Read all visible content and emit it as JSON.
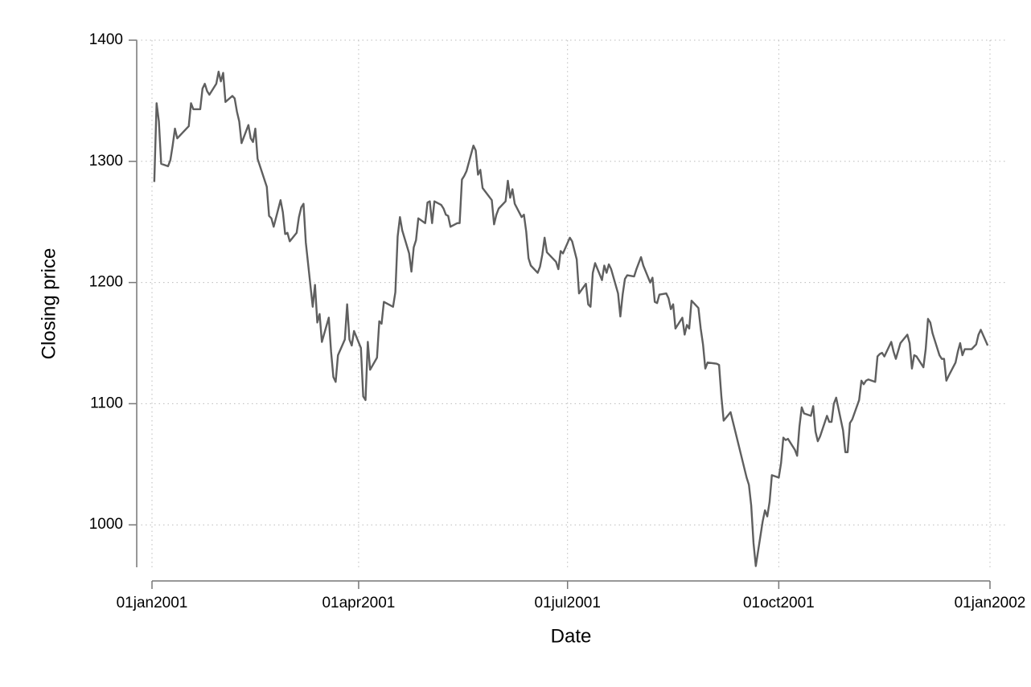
{
  "chart_data": {
    "type": "line",
    "x_label": "Date",
    "y_label": "Closing price",
    "color": "#5f5f5f",
    "grid": true,
    "xlim": [
      "2001-01-01",
      "2002-01-01"
    ],
    "xticks": [
      {
        "value": "2001-01-01",
        "label": "01jan2001"
      },
      {
        "value": "2001-04-01",
        "label": "01apr2001"
      },
      {
        "value": "2001-07-01",
        "label": "01jul2001"
      },
      {
        "value": "2001-10-01",
        "label": "01oct2001"
      },
      {
        "value": "2002-01-01",
        "label": "01jan2002"
      }
    ],
    "ylim": [
      965,
      1400
    ],
    "yticks": [
      1000,
      1100,
      1200,
      1300,
      1400
    ],
    "x": [
      "2001-01-02",
      "2001-01-03",
      "2001-01-04",
      "2001-01-05",
      "2001-01-08",
      "2001-01-09",
      "2001-01-10",
      "2001-01-11",
      "2001-01-12",
      "2001-01-16",
      "2001-01-17",
      "2001-01-18",
      "2001-01-19",
      "2001-01-22",
      "2001-01-23",
      "2001-01-24",
      "2001-01-25",
      "2001-01-26",
      "2001-01-29",
      "2001-01-30",
      "2001-01-31",
      "2001-02-01",
      "2001-02-02",
      "2001-02-05",
      "2001-02-06",
      "2001-02-07",
      "2001-02-08",
      "2001-02-09",
      "2001-02-12",
      "2001-02-13",
      "2001-02-14",
      "2001-02-15",
      "2001-02-16",
      "2001-02-20",
      "2001-02-21",
      "2001-02-22",
      "2001-02-23",
      "2001-02-26",
      "2001-02-27",
      "2001-02-28",
      "2001-03-01",
      "2001-03-02",
      "2001-03-05",
      "2001-03-06",
      "2001-03-07",
      "2001-03-08",
      "2001-03-09",
      "2001-03-12",
      "2001-03-13",
      "2001-03-14",
      "2001-03-15",
      "2001-03-16",
      "2001-03-19",
      "2001-03-20",
      "2001-03-21",
      "2001-03-22",
      "2001-03-23",
      "2001-03-26",
      "2001-03-27",
      "2001-03-28",
      "2001-03-29",
      "2001-03-30",
      "2001-04-02",
      "2001-04-03",
      "2001-04-04",
      "2001-04-05",
      "2001-04-06",
      "2001-04-09",
      "2001-04-10",
      "2001-04-11",
      "2001-04-12",
      "2001-04-16",
      "2001-04-17",
      "2001-04-18",
      "2001-04-19",
      "2001-04-20",
      "2001-04-23",
      "2001-04-24",
      "2001-04-25",
      "2001-04-26",
      "2001-04-27",
      "2001-04-30",
      "2001-05-01",
      "2001-05-02",
      "2001-05-03",
      "2001-05-04",
      "2001-05-07",
      "2001-05-08",
      "2001-05-09",
      "2001-05-10",
      "2001-05-11",
      "2001-05-14",
      "2001-05-15",
      "2001-05-16",
      "2001-05-17",
      "2001-05-18",
      "2001-05-21",
      "2001-05-22",
      "2001-05-23",
      "2001-05-24",
      "2001-05-25",
      "2001-05-29",
      "2001-05-30",
      "2001-05-31",
      "2001-06-01",
      "2001-06-04",
      "2001-06-05",
      "2001-06-06",
      "2001-06-07",
      "2001-06-08",
      "2001-06-11",
      "2001-06-12",
      "2001-06-13",
      "2001-06-14",
      "2001-06-15",
      "2001-06-18",
      "2001-06-19",
      "2001-06-20",
      "2001-06-21",
      "2001-06-22",
      "2001-06-25",
      "2001-06-26",
      "2001-06-27",
      "2001-06-28",
      "2001-06-29",
      "2001-07-02",
      "2001-07-03",
      "2001-07-05",
      "2001-07-06",
      "2001-07-09",
      "2001-07-10",
      "2001-07-11",
      "2001-07-12",
      "2001-07-13",
      "2001-07-16",
      "2001-07-17",
      "2001-07-18",
      "2001-07-19",
      "2001-07-20",
      "2001-07-23",
      "2001-07-24",
      "2001-07-25",
      "2001-07-26",
      "2001-07-27",
      "2001-07-30",
      "2001-07-31",
      "2001-08-01",
      "2001-08-02",
      "2001-08-03",
      "2001-08-06",
      "2001-08-07",
      "2001-08-08",
      "2001-08-09",
      "2001-08-10",
      "2001-08-13",
      "2001-08-14",
      "2001-08-15",
      "2001-08-16",
      "2001-08-17",
      "2001-08-20",
      "2001-08-21",
      "2001-08-22",
      "2001-08-23",
      "2001-08-24",
      "2001-08-27",
      "2001-08-28",
      "2001-08-29",
      "2001-08-30",
      "2001-08-31",
      "2001-09-04",
      "2001-09-05",
      "2001-09-06",
      "2001-09-07",
      "2001-09-10",
      "2001-09-17",
      "2001-09-18",
      "2001-09-19",
      "2001-09-20",
      "2001-09-21",
      "2001-09-24",
      "2001-09-25",
      "2001-09-26",
      "2001-09-27",
      "2001-09-28",
      "2001-10-01",
      "2001-10-02",
      "2001-10-03",
      "2001-10-04",
      "2001-10-05",
      "2001-10-08",
      "2001-10-09",
      "2001-10-10",
      "2001-10-11",
      "2001-10-12",
      "2001-10-15",
      "2001-10-16",
      "2001-10-17",
      "2001-10-18",
      "2001-10-19",
      "2001-10-22",
      "2001-10-23",
      "2001-10-24",
      "2001-10-25",
      "2001-10-26",
      "2001-10-29",
      "2001-10-30",
      "2001-10-31",
      "2001-11-01",
      "2001-11-02",
      "2001-11-05",
      "2001-11-06",
      "2001-11-07",
      "2001-11-08",
      "2001-11-09",
      "2001-11-12",
      "2001-11-13",
      "2001-11-14",
      "2001-11-15",
      "2001-11-16",
      "2001-11-19",
      "2001-11-20",
      "2001-11-21",
      "2001-11-23",
      "2001-11-26",
      "2001-11-27",
      "2001-11-28",
      "2001-11-29",
      "2001-11-30",
      "2001-12-03",
      "2001-12-04",
      "2001-12-05",
      "2001-12-06",
      "2001-12-07",
      "2001-12-10",
      "2001-12-11",
      "2001-12-12",
      "2001-12-13",
      "2001-12-14",
      "2001-12-17",
      "2001-12-18",
      "2001-12-19",
      "2001-12-20",
      "2001-12-21",
      "2001-12-24",
      "2001-12-26",
      "2001-12-27",
      "2001-12-28",
      "2001-12-31"
    ],
    "values": [
      1283,
      1348,
      1333,
      1298,
      1296,
      1301,
      1313,
      1327,
      1319,
      1327,
      1329,
      1348,
      1343,
      1343,
      1360,
      1364,
      1358,
      1355,
      1364,
      1374,
      1366,
      1373,
      1349,
      1354,
      1352,
      1341,
      1333,
      1315,
      1330,
      1319,
      1316,
      1327,
      1302,
      1279,
      1255,
      1253,
      1246,
      1268,
      1258,
      1240,
      1241,
      1234,
      1241,
      1254,
      1262,
      1265,
      1233,
      1180,
      1198,
      1167,
      1174,
      1151,
      1171,
      1143,
      1122,
      1118,
      1140,
      1153,
      1182,
      1153,
      1148,
      1160,
      1146,
      1106,
      1103,
      1151,
      1128,
      1138,
      1168,
      1166,
      1184,
      1180,
      1192,
      1238,
      1254,
      1243,
      1224,
      1209,
      1229,
      1235,
      1253,
      1249,
      1266,
      1267,
      1249,
      1267,
      1264,
      1261,
      1256,
      1255,
      1246,
      1249,
      1249,
      1285,
      1288,
      1292,
      1313,
      1309,
      1289,
      1293,
      1278,
      1268,
      1248,
      1256,
      1261,
      1267,
      1284,
      1270,
      1277,
      1265,
      1254,
      1256,
      1242,
      1220,
      1214,
      1208,
      1213,
      1223,
      1237,
      1225,
      1219,
      1217,
      1211,
      1226,
      1224,
      1237,
      1234,
      1219,
      1191,
      1199,
      1182,
      1180,
      1208,
      1216,
      1202,
      1214,
      1208,
      1215,
      1211,
      1191,
      1172,
      1190,
      1203,
      1206,
      1205,
      1211,
      1216,
      1221,
      1214,
      1200,
      1204,
      1184,
      1183,
      1190,
      1191,
      1187,
      1178,
      1182,
      1162,
      1171,
      1157,
      1165,
      1162,
      1185,
      1179,
      1162,
      1149,
      1129,
      1134,
      1133,
      1132,
      1106,
      1086,
      1093,
      1039,
      1033,
      1016,
      985,
      966,
      1003,
      1012,
      1007,
      1019,
      1041,
      1039,
      1051,
      1072,
      1070,
      1071,
      1062,
      1057,
      1081,
      1097,
      1092,
      1090,
      1098,
      1077,
      1069,
      1073,
      1090,
      1085,
      1085,
      1100,
      1105,
      1078,
      1060,
      1060,
      1084,
      1087,
      1103,
      1119,
      1116,
      1119,
      1120,
      1118,
      1139,
      1141,
      1142,
      1139,
      1151,
      1143,
      1137,
      1150,
      1157,
      1150,
      1129,
      1140,
      1139,
      1130,
      1145,
      1170,
      1167,
      1158,
      1140,
      1137,
      1137,
      1119,
      1123,
      1134,
      1143,
      1150,
      1140,
      1145,
      1145,
      1149,
      1157,
      1161,
      1148
    ]
  }
}
